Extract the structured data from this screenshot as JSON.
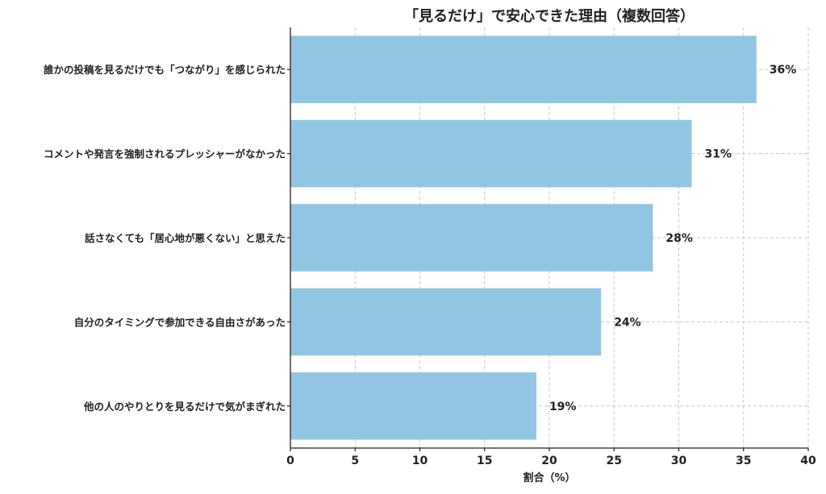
{
  "chart_data": {
    "type": "bar",
    "orientation": "horizontal",
    "title": "「見るだけ」で安心できた理由（複数回答）",
    "xlabel": "割合（%）",
    "ylabel": "",
    "categories": [
      "誰かの投稿を見るだけでも「つながり」を感じられた",
      "コメントや発言を強制されるプレッシャーがなかった",
      "話さなくても「居心地が悪くない」と思えた",
      "自分のタイミングで参加できる自由さがあった",
      "他の人のやりとりを見るだけで気がまぎれた"
    ],
    "values": [
      36,
      31,
      28,
      24,
      19
    ],
    "value_labels": [
      "36%",
      "31%",
      "28%",
      "24%",
      "19%"
    ],
    "xlim": [
      0,
      40
    ],
    "xticks": [
      0,
      5,
      10,
      15,
      20,
      25,
      30,
      35,
      40
    ],
    "grid": true,
    "bar_color": "#92c5e2"
  }
}
